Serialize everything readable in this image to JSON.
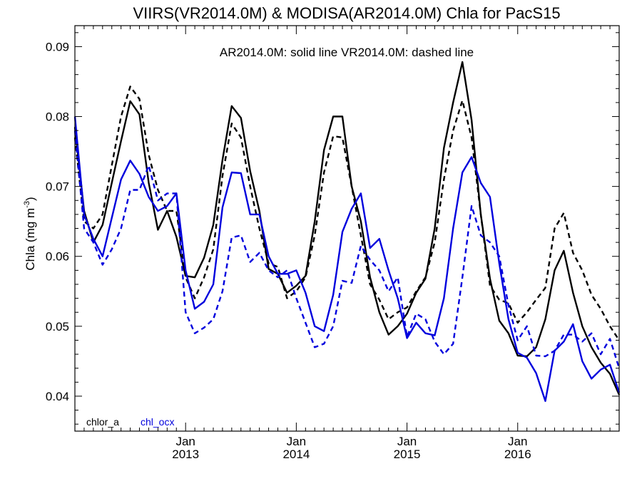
{
  "chart_data": {
    "type": "line",
    "title": "VIIRS(VR2014.0M) & MODISA(AR2014.0M)  Chla for PacS15",
    "annotation": "AR2014.0M: solid line   VR2014.0M: dashed line",
    "ylabel": "Chla (mg m",
    "ylabel_sup": "-3",
    "ylabel_close": ")",
    "ylim": [
      0.035,
      0.093
    ],
    "yticks": [
      0.04,
      0.05,
      0.06,
      0.07,
      0.08,
      0.09
    ],
    "ytick_labels": [
      "0.04",
      "0.05",
      "0.06",
      "0.07",
      "0.08",
      "0.09"
    ],
    "x_start": "2012-01",
    "xlim_months": [
      0,
      59
    ],
    "xticks": [
      {
        "month_index": 12,
        "month": "Jan",
        "year": "2013"
      },
      {
        "month_index": 24,
        "month": "Jan",
        "year": "2014"
      },
      {
        "month_index": 36,
        "month": "Jan",
        "year": "2015"
      },
      {
        "month_index": 48,
        "month": "Jan",
        "year": "2016"
      }
    ],
    "grid": false,
    "legend_position": "bottom-left",
    "legend": [
      {
        "label": "chlor_a",
        "color": "#000000"
      },
      {
        "label": "chl_ocx",
        "color": "#0000dd"
      }
    ],
    "series": [
      {
        "product": "chlor_a",
        "sensor": "AR2014.0M",
        "color": "#000000",
        "style": "solid",
        "values": [
          0.0785,
          0.0665,
          0.062,
          0.0645,
          0.0705,
          0.0765,
          0.0822,
          0.0803,
          0.0705,
          0.0638,
          0.0665,
          0.0628,
          0.0572,
          0.057,
          0.0598,
          0.0645,
          0.0738,
          0.0815,
          0.0798,
          0.0722,
          0.0665,
          0.0582,
          0.0575,
          0.0548,
          0.0558,
          0.0572,
          0.065,
          0.0752,
          0.08,
          0.08,
          0.07,
          0.065,
          0.057,
          0.052,
          0.0488,
          0.05,
          0.0518,
          0.0548,
          0.0568,
          0.064,
          0.0755,
          0.082,
          0.0878,
          0.0795,
          0.066,
          0.0568,
          0.0508,
          0.049,
          0.0458,
          0.0457,
          0.047,
          0.051,
          0.058,
          0.0608,
          0.0548,
          0.05,
          0.047,
          0.0448,
          0.0432,
          0.0402
        ]
      },
      {
        "product": "chlor_a",
        "sensor": "VR2014.0M",
        "color": "#000000",
        "style": "dashed",
        "values": [
          0.077,
          0.065,
          0.064,
          0.066,
          0.073,
          0.08,
          0.0843,
          0.0825,
          0.0745,
          0.0695,
          0.0665,
          0.0665,
          0.057,
          0.054,
          0.057,
          0.061,
          0.0715,
          0.079,
          0.077,
          0.07,
          0.064,
          0.059,
          0.0585,
          0.054,
          0.055,
          0.057,
          0.063,
          0.072,
          0.0772,
          0.077,
          0.07,
          0.063,
          0.056,
          0.0538,
          0.051,
          0.052,
          0.0527,
          0.055,
          0.057,
          0.062,
          0.071,
          0.078,
          0.0823,
          0.077,
          0.066,
          0.0558,
          0.0538,
          0.0533,
          0.0505,
          0.052,
          0.0538,
          0.0555,
          0.064,
          0.0662,
          0.0605,
          0.058,
          0.0545,
          0.0525,
          0.05,
          0.048
        ]
      },
      {
        "product": "chl_ocx",
        "sensor": "AR2014.0M",
        "color": "#0000dd",
        "style": "solid",
        "values": [
          0.08,
          0.066,
          0.0625,
          0.06,
          0.0655,
          0.071,
          0.0737,
          0.0718,
          0.0685,
          0.0665,
          0.0672,
          0.069,
          0.058,
          0.0525,
          0.0535,
          0.056,
          0.067,
          0.072,
          0.0719,
          0.066,
          0.066,
          0.06,
          0.0575,
          0.0575,
          0.058,
          0.0548,
          0.05,
          0.0493,
          0.0545,
          0.0635,
          0.0668,
          0.069,
          0.0612,
          0.0625,
          0.058,
          0.054,
          0.0483,
          0.0505,
          0.049,
          0.0487,
          0.054,
          0.064,
          0.072,
          0.0742,
          0.0705,
          0.0685,
          0.059,
          0.051,
          0.0462,
          0.0455,
          0.0433,
          0.0393,
          0.0465,
          0.0478,
          0.0503,
          0.045,
          0.0425,
          0.0438,
          0.0445,
          0.0405
        ]
      },
      {
        "product": "chl_ocx",
        "sensor": "VR2014.0M",
        "color": "#0000dd",
        "style": "dashed",
        "values": [
          0.078,
          0.064,
          0.062,
          0.0588,
          0.061,
          0.064,
          0.0695,
          0.0695,
          0.073,
          0.068,
          0.069,
          0.069,
          0.052,
          0.049,
          0.0498,
          0.051,
          0.055,
          0.0627,
          0.063,
          0.0592,
          0.0605,
          0.058,
          0.057,
          0.058,
          0.054,
          0.0505,
          0.047,
          0.0475,
          0.05,
          0.0565,
          0.0562,
          0.0615,
          0.0595,
          0.058,
          0.055,
          0.057,
          0.0485,
          0.0518,
          0.051,
          0.0478,
          0.046,
          0.0475,
          0.057,
          0.0672,
          0.063,
          0.062,
          0.06,
          0.053,
          0.048,
          0.05,
          0.0458,
          0.0457,
          0.0465,
          0.0488,
          0.0488,
          0.0478,
          0.049,
          0.046,
          0.0482,
          0.044
        ]
      }
    ]
  }
}
